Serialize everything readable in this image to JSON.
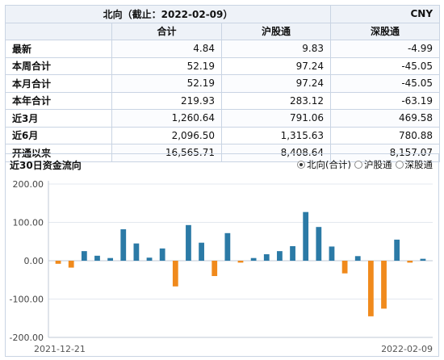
{
  "table": {
    "title": "北向（截止：2022-02-09）",
    "currency": "CNY",
    "columns": [
      "合计",
      "沪股通",
      "深股通"
    ],
    "rows": [
      {
        "label": "最新",
        "values": [
          "4.84",
          "9.83",
          "-4.99"
        ]
      },
      {
        "label": "本周合计",
        "values": [
          "52.19",
          "97.24",
          "-45.05"
        ]
      },
      {
        "label": "本月合计",
        "values": [
          "52.19",
          "97.24",
          "-45.05"
        ]
      },
      {
        "label": "本年合计",
        "values": [
          "219.93",
          "283.12",
          "-63.19"
        ]
      },
      {
        "label": "近3月",
        "values": [
          "1,260.64",
          "791.06",
          "469.58"
        ]
      },
      {
        "label": "近6月",
        "values": [
          "2,096.50",
          "1,315.63",
          "780.88"
        ]
      },
      {
        "label": "开通以来",
        "values": [
          "16,565.71",
          "8,408.64",
          "8,157.07"
        ]
      }
    ]
  },
  "chart_panel": {
    "title": "近30日资金流向",
    "options": [
      {
        "label": "北向(合计)",
        "selected": true
      },
      {
        "label": "沪股通",
        "selected": false
      },
      {
        "label": "深股通",
        "selected": false
      }
    ]
  },
  "colors": {
    "positive": "#2b7aa6",
    "negative": "#f08a1c",
    "grid": "#e3e8ef",
    "axis": "#bfc8d4"
  },
  "chart_data": {
    "type": "bar",
    "title": "近30日资金流向",
    "x_start_label": "2021-12-21",
    "x_end_label": "2022-02-09",
    "ylim": [
      -200,
      200
    ],
    "y_ticks": [
      "200.00",
      "100.00",
      "0.00",
      "-100.00",
      "-200.00"
    ],
    "y_tick_values": [
      200,
      100,
      0,
      -100,
      -200
    ],
    "grid": true,
    "values": [
      -8,
      -18,
      25,
      13,
      7,
      82,
      45,
      8,
      32,
      -67,
      93,
      47,
      -40,
      72,
      -5,
      7,
      17,
      25,
      38,
      127,
      88,
      37,
      -33,
      12,
      -145,
      -125,
      55,
      -5,
      5
    ]
  }
}
